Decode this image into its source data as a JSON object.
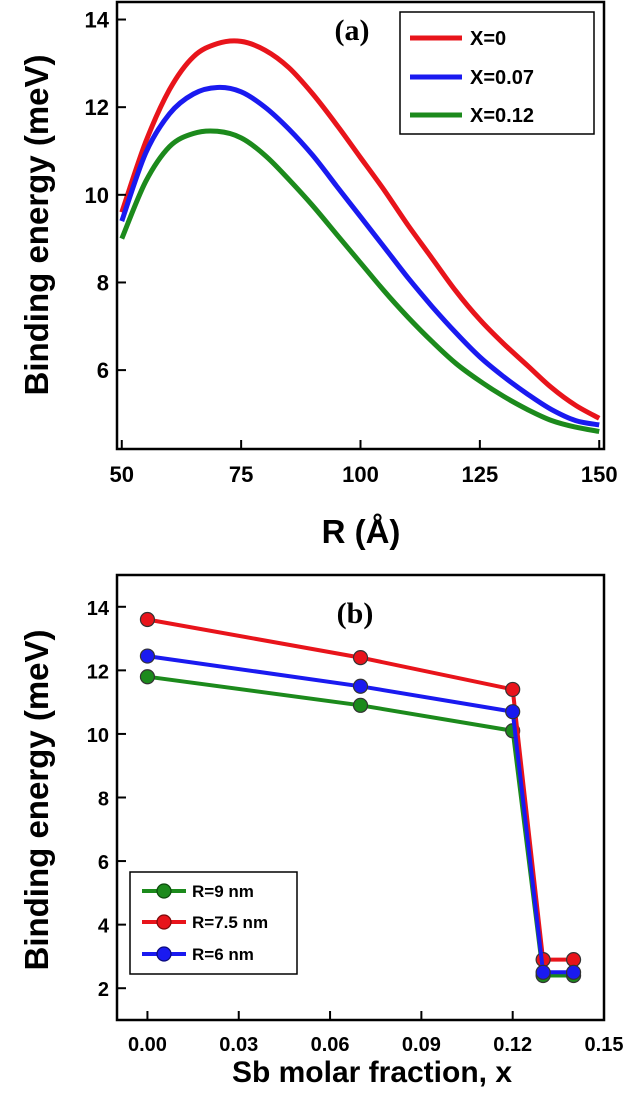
{
  "chart_data": [
    {
      "type": "line",
      "panel_label": "(a)",
      "xlabel": "R (Å)",
      "ylabel": "Binding energy (meV)",
      "xlim": [
        49,
        151
      ],
      "ylim": [
        4.2,
        14.4
      ],
      "xticks": [
        50,
        75,
        100,
        125,
        150
      ],
      "yticks": [
        6,
        8,
        10,
        12,
        14
      ],
      "xtick_labels": [
        "50",
        "75",
        "100",
        "125",
        "150"
      ],
      "ytick_labels": [
        "6",
        "8",
        "10",
        "12",
        "14"
      ],
      "legend_position": "top-right",
      "x": [
        50,
        55,
        60,
        65,
        70,
        75,
        80,
        85,
        90,
        95,
        100,
        105,
        110,
        115,
        120,
        125,
        130,
        135,
        140,
        145,
        150
      ],
      "series": [
        {
          "name": "X=0",
          "color": "#e8141b",
          "values": [
            9.6,
            11.2,
            12.4,
            13.15,
            13.45,
            13.5,
            13.3,
            12.9,
            12.3,
            11.6,
            10.85,
            10.1,
            9.3,
            8.55,
            7.8,
            7.15,
            6.6,
            6.1,
            5.6,
            5.2,
            4.9
          ]
        },
        {
          "name": "X=0.07",
          "color": "#1a1af0",
          "values": [
            9.4,
            10.95,
            11.85,
            12.3,
            12.45,
            12.35,
            12.0,
            11.5,
            10.9,
            10.2,
            9.5,
            8.8,
            8.1,
            7.45,
            6.85,
            6.3,
            5.85,
            5.45,
            5.1,
            4.85,
            4.75
          ]
        },
        {
          "name": "X=0.12",
          "color": "#1c8a1c",
          "values": [
            9.0,
            10.3,
            11.1,
            11.4,
            11.45,
            11.3,
            10.9,
            10.35,
            9.75,
            9.1,
            8.45,
            7.8,
            7.2,
            6.65,
            6.15,
            5.75,
            5.4,
            5.1,
            4.85,
            4.7,
            4.6
          ]
        }
      ]
    },
    {
      "type": "line",
      "panel_label": "(b)",
      "xlabel": "Sb molar fraction, x",
      "ylabel": "Binding energy (meV)",
      "xlim": [
        -0.01,
        0.15
      ],
      "ylim": [
        1,
        15
      ],
      "xticks": [
        0.0,
        0.03,
        0.06,
        0.09,
        0.12,
        0.15
      ],
      "yticks": [
        2,
        4,
        6,
        8,
        10,
        12,
        14
      ],
      "xtick_labels": [
        "0.00",
        "0.03",
        "0.06",
        "0.09",
        "0.12",
        "0.15"
      ],
      "ytick_labels": [
        "2",
        "4",
        "6",
        "8",
        "10",
        "12",
        "14"
      ],
      "legend_position": "bottom-left",
      "x": [
        0.0,
        0.07,
        0.12,
        0.13,
        0.14
      ],
      "series": [
        {
          "name": "R=9 nm",
          "color": "#1c8a1c",
          "values": [
            11.8,
            10.9,
            10.1,
            2.4,
            2.4
          ]
        },
        {
          "name": "R=7.5 nm",
          "color": "#e8141b",
          "values": [
            13.6,
            12.4,
            11.4,
            2.9,
            2.9
          ]
        },
        {
          "name": "R=6 nm",
          "color": "#1a1af0",
          "values": [
            12.45,
            11.5,
            10.7,
            2.5,
            2.5
          ]
        }
      ]
    }
  ]
}
